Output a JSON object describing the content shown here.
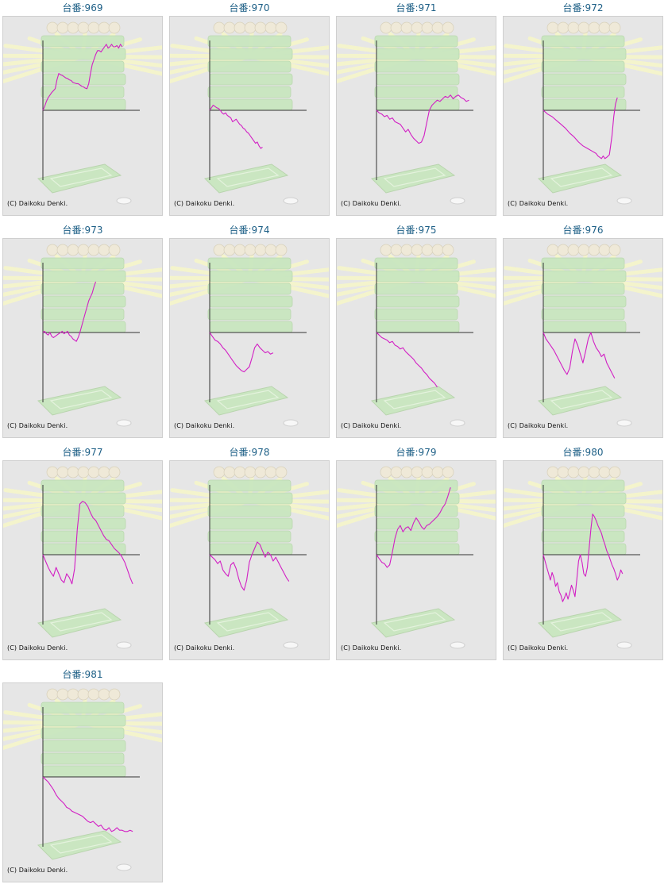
{
  "page": {
    "copyright": "(C) Daikoku Denki.",
    "colors": {
      "title": "#1d5f86",
      "line": "#d21fc4",
      "axis": "#333333",
      "panel_bg": "#e6e6e6",
      "bg_art_green": "#c9e7c0",
      "bg_art_rays": "#f4f4cc"
    },
    "background_art": "pachinko-ball-tray-illustration"
  },
  "chart_data": [
    {
      "type": "line",
      "title": "台番:969",
      "x": [
        0,
        2,
        4,
        6,
        8,
        10,
        12,
        14,
        16,
        18,
        20,
        22,
        24,
        26,
        28,
        30,
        32,
        34,
        36,
        38,
        40,
        42,
        44,
        46,
        48,
        50,
        52,
        54,
        56,
        58,
        60,
        62,
        64,
        66,
        68,
        70,
        72,
        74,
        76,
        78,
        80,
        82,
        84,
        86,
        88,
        90
      ],
      "values": [
        0,
        6,
        14,
        20,
        24,
        28,
        31,
        34,
        48,
        58,
        56,
        55,
        53,
        51,
        50,
        48,
        47,
        44,
        43,
        42,
        42,
        40,
        38,
        37,
        35,
        34,
        42,
        58,
        72,
        80,
        88,
        94,
        94,
        92,
        96,
        100,
        104,
        98,
        100,
        104,
        100,
        100,
        102,
        98,
        104,
        100
      ]
    },
    {
      "type": "line",
      "title": "台番:970",
      "x": [
        0,
        2,
        4,
        6,
        8,
        10,
        12,
        14,
        16,
        18,
        20,
        22,
        24,
        26,
        28,
        30,
        32,
        34,
        36,
        38,
        40,
        42,
        44,
        46,
        48,
        50,
        52,
        54,
        56,
        58,
        60
      ],
      "values": [
        0,
        4,
        8,
        6,
        4,
        3,
        0,
        -4,
        -6,
        -4,
        -8,
        -10,
        -12,
        -18,
        -16,
        -14,
        -18,
        -22,
        -24,
        -28,
        -30,
        -34,
        -36,
        -40,
        -44,
        -48,
        -52,
        -50,
        -56,
        -60,
        -58
      ]
    },
    {
      "type": "line",
      "title": "台番:971",
      "x": [
        0,
        3,
        6,
        9,
        12,
        15,
        18,
        21,
        24,
        27,
        30,
        33,
        36,
        39,
        42,
        45,
        48,
        51,
        54,
        57,
        60,
        63,
        66,
        69,
        72,
        75,
        78,
        81,
        84,
        87,
        90,
        93,
        96,
        99,
        102,
        105
      ],
      "values": [
        0,
        -4,
        -6,
        -10,
        -8,
        -14,
        -12,
        -18,
        -20,
        -22,
        -28,
        -34,
        -30,
        -38,
        -44,
        -48,
        -52,
        -50,
        -40,
        -20,
        0,
        8,
        12,
        16,
        14,
        18,
        22,
        20,
        24,
        18,
        22,
        24,
        20,
        18,
        14,
        16
      ]
    },
    {
      "type": "line",
      "title": "台番:972",
      "x": [
        0,
        5,
        10,
        15,
        20,
        25,
        30,
        35,
        40,
        45,
        50,
        55,
        60,
        62,
        64,
        66,
        68,
        70,
        72,
        75,
        78,
        80,
        82,
        84
      ],
      "values": [
        0,
        -6,
        -10,
        -16,
        -22,
        -28,
        -36,
        -42,
        -50,
        -56,
        -60,
        -64,
        -68,
        -72,
        -74,
        -76,
        -72,
        -76,
        -74,
        -70,
        -40,
        -10,
        10,
        20
      ]
    },
    {
      "type": "line",
      "title": "台番:973",
      "x": [
        0,
        2,
        4,
        6,
        8,
        10,
        12,
        14,
        16,
        18,
        20,
        22,
        24,
        26,
        28,
        30,
        32,
        34,
        36,
        38,
        40,
        42,
        44,
        46,
        48,
        50,
        52,
        54,
        56,
        58,
        60
      ],
      "values": [
        0,
        2,
        -2,
        -4,
        0,
        -6,
        -8,
        -6,
        -4,
        -2,
        0,
        2,
        -2,
        0,
        2,
        -4,
        -6,
        -10,
        -12,
        -14,
        -8,
        0,
        10,
        20,
        30,
        40,
        50,
        56,
        62,
        72,
        80
      ]
    },
    {
      "type": "line",
      "title": "台番:974",
      "x": [
        0,
        3,
        6,
        9,
        12,
        15,
        18,
        21,
        24,
        27,
        30,
        33,
        36,
        39,
        42,
        45,
        48,
        51,
        54,
        57,
        60,
        63,
        66,
        69,
        72
      ],
      "values": [
        0,
        -6,
        -12,
        -14,
        -18,
        -24,
        -28,
        -34,
        -40,
        -46,
        -52,
        -56,
        -60,
        -62,
        -58,
        -54,
        -40,
        -24,
        -18,
        -24,
        -28,
        -32,
        -30,
        -34,
        -32
      ]
    },
    {
      "type": "line",
      "title": "台番:975",
      "x": [
        0,
        3,
        6,
        9,
        12,
        15,
        18,
        21,
        24,
        27,
        30,
        33,
        36,
        39,
        42,
        45,
        48,
        51,
        54,
        57,
        60,
        63,
        66,
        69
      ],
      "values": [
        0,
        -4,
        -8,
        -10,
        -12,
        -16,
        -14,
        -20,
        -22,
        -26,
        -24,
        -30,
        -34,
        -38,
        -42,
        -48,
        -52,
        -56,
        -62,
        -66,
        -72,
        -76,
        -80,
        -86
      ]
    },
    {
      "type": "line",
      "title": "台番:976",
      "x": [
        0,
        3,
        6,
        9,
        12,
        15,
        18,
        21,
        24,
        27,
        30,
        33,
        36,
        39,
        42,
        45,
        48,
        51,
        54,
        57,
        60,
        63,
        66,
        69,
        72,
        75,
        78,
        81
      ],
      "values": [
        0,
        -10,
        -16,
        -22,
        -28,
        -36,
        -44,
        -52,
        -60,
        -66,
        -56,
        -30,
        -10,
        -20,
        -34,
        -48,
        -30,
        -10,
        0,
        -14,
        -24,
        -30,
        -38,
        -34,
        -48,
        -56,
        -64,
        -72
      ]
    },
    {
      "type": "line",
      "title": "台番:977",
      "x": [
        0,
        3,
        6,
        9,
        12,
        15,
        18,
        21,
        24,
        27,
        30,
        33,
        36,
        39,
        42,
        45,
        48,
        51,
        54,
        57,
        60,
        63,
        66,
        69,
        72,
        75,
        78,
        81,
        84,
        87,
        90,
        93,
        96,
        99,
        102
      ],
      "values": [
        0,
        -10,
        -20,
        -28,
        -34,
        -20,
        -30,
        -40,
        -44,
        -30,
        -36,
        -46,
        -22,
        40,
        80,
        84,
        82,
        76,
        66,
        58,
        54,
        46,
        38,
        30,
        24,
        22,
        16,
        10,
        6,
        2,
        -4,
        -12,
        -24,
        -36,
        -46
      ]
    },
    {
      "type": "line",
      "title": "台番:978",
      "x": [
        0,
        3,
        6,
        9,
        12,
        15,
        18,
        21,
        24,
        27,
        30,
        33,
        36,
        39,
        42,
        45,
        48,
        51,
        54,
        57,
        60,
        63,
        66,
        69,
        72,
        75,
        78,
        81,
        84,
        87,
        90
      ],
      "values": [
        0,
        -4,
        -8,
        -14,
        -10,
        -24,
        -30,
        -34,
        -16,
        -12,
        -22,
        -38,
        -50,
        -56,
        -40,
        -12,
        0,
        10,
        20,
        16,
        6,
        -4,
        4,
        0,
        -10,
        -4,
        -12,
        -20,
        -28,
        -36,
        -42
      ]
    },
    {
      "type": "line",
      "title": "台番:979",
      "x": [
        0,
        3,
        6,
        9,
        12,
        15,
        18,
        21,
        24,
        27,
        30,
        33,
        36,
        39,
        42,
        45,
        48,
        51,
        54,
        57,
        60,
        63,
        66,
        69,
        72,
        75,
        78,
        81,
        84
      ],
      "values": [
        0,
        -6,
        -12,
        -14,
        -20,
        -16,
        4,
        26,
        40,
        46,
        36,
        42,
        44,
        38,
        50,
        58,
        52,
        44,
        40,
        46,
        48,
        52,
        56,
        60,
        66,
        74,
        80,
        92,
        106
      ]
    },
    {
      "type": "line",
      "title": "台番:980",
      "x": [
        0,
        2,
        4,
        6,
        8,
        10,
        12,
        14,
        16,
        18,
        20,
        22,
        24,
        26,
        28,
        30,
        32,
        34,
        36,
        38,
        40,
        42,
        44,
        46,
        48,
        50,
        52,
        54,
        56,
        58,
        60,
        62,
        64,
        66,
        68,
        70,
        72,
        74,
        76,
        78,
        80,
        82,
        84,
        86,
        88,
        90
      ],
      "values": [
        0,
        -10,
        -20,
        -30,
        -40,
        -28,
        -36,
        -50,
        -44,
        -58,
        -64,
        -74,
        -68,
        -60,
        -70,
        -60,
        -48,
        -56,
        -66,
        -40,
        -10,
        0,
        -12,
        -30,
        -34,
        -20,
        10,
        40,
        64,
        60,
        54,
        46,
        40,
        34,
        24,
        16,
        6,
        0,
        -8,
        -16,
        -22,
        -30,
        -40,
        -34,
        -24,
        -30
      ]
    },
    {
      "type": "line",
      "title": "台番:981",
      "x": [
        0,
        3,
        6,
        9,
        12,
        15,
        18,
        21,
        24,
        27,
        30,
        33,
        36,
        39,
        42,
        45,
        48,
        51,
        54,
        57,
        60,
        63,
        66,
        69,
        72,
        75,
        78,
        81,
        84,
        87,
        90,
        93,
        96,
        99,
        102
      ],
      "values": [
        0,
        -4,
        -8,
        -14,
        -20,
        -28,
        -34,
        -38,
        -42,
        -48,
        -50,
        -54,
        -56,
        -58,
        -60,
        -62,
        -66,
        -70,
        -72,
        -70,
        -74,
        -78,
        -76,
        -82,
        -84,
        -80,
        -86,
        -84,
        -80,
        -84,
        -84,
        -86,
        -86,
        -84,
        -86
      ]
    }
  ]
}
